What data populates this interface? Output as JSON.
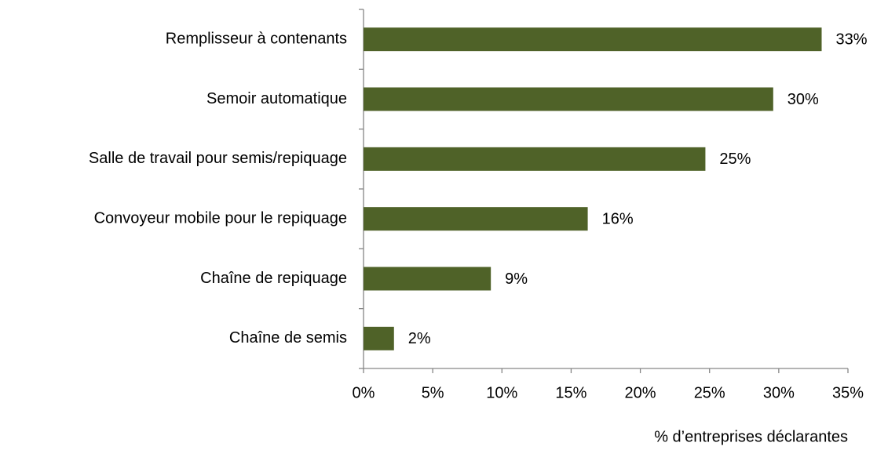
{
  "chart_data": {
    "type": "hbar",
    "categories": [
      "Remplisseur à contenants",
      "Semoir automatique",
      "Salle de travail pour semis/repiquage",
      "Convoyeur mobile pour le repiquage",
      "Chaîne de repiquage",
      "Chaîne de semis"
    ],
    "values": [
      33.1,
      29.6,
      24.7,
      16.2,
      9.2,
      2.2
    ],
    "value_labels": [
      "33%",
      "30%",
      "25%",
      "16%",
      "9%",
      "2%"
    ],
    "color": "#4f6228",
    "xlim": [
      0,
      35
    ],
    "xticks": [
      {
        "value": 0,
        "label": "0%"
      },
      {
        "value": 5,
        "label": "5%"
      },
      {
        "value": 10,
        "label": "10%"
      },
      {
        "value": 15,
        "label": "15%"
      },
      {
        "value": 20,
        "label": "20%"
      },
      {
        "value": 25,
        "label": "25%"
      },
      {
        "value": 30,
        "label": "30%"
      },
      {
        "value": 35,
        "label": "35%"
      }
    ],
    "x_label": "% d’entreprises déclarantes"
  }
}
